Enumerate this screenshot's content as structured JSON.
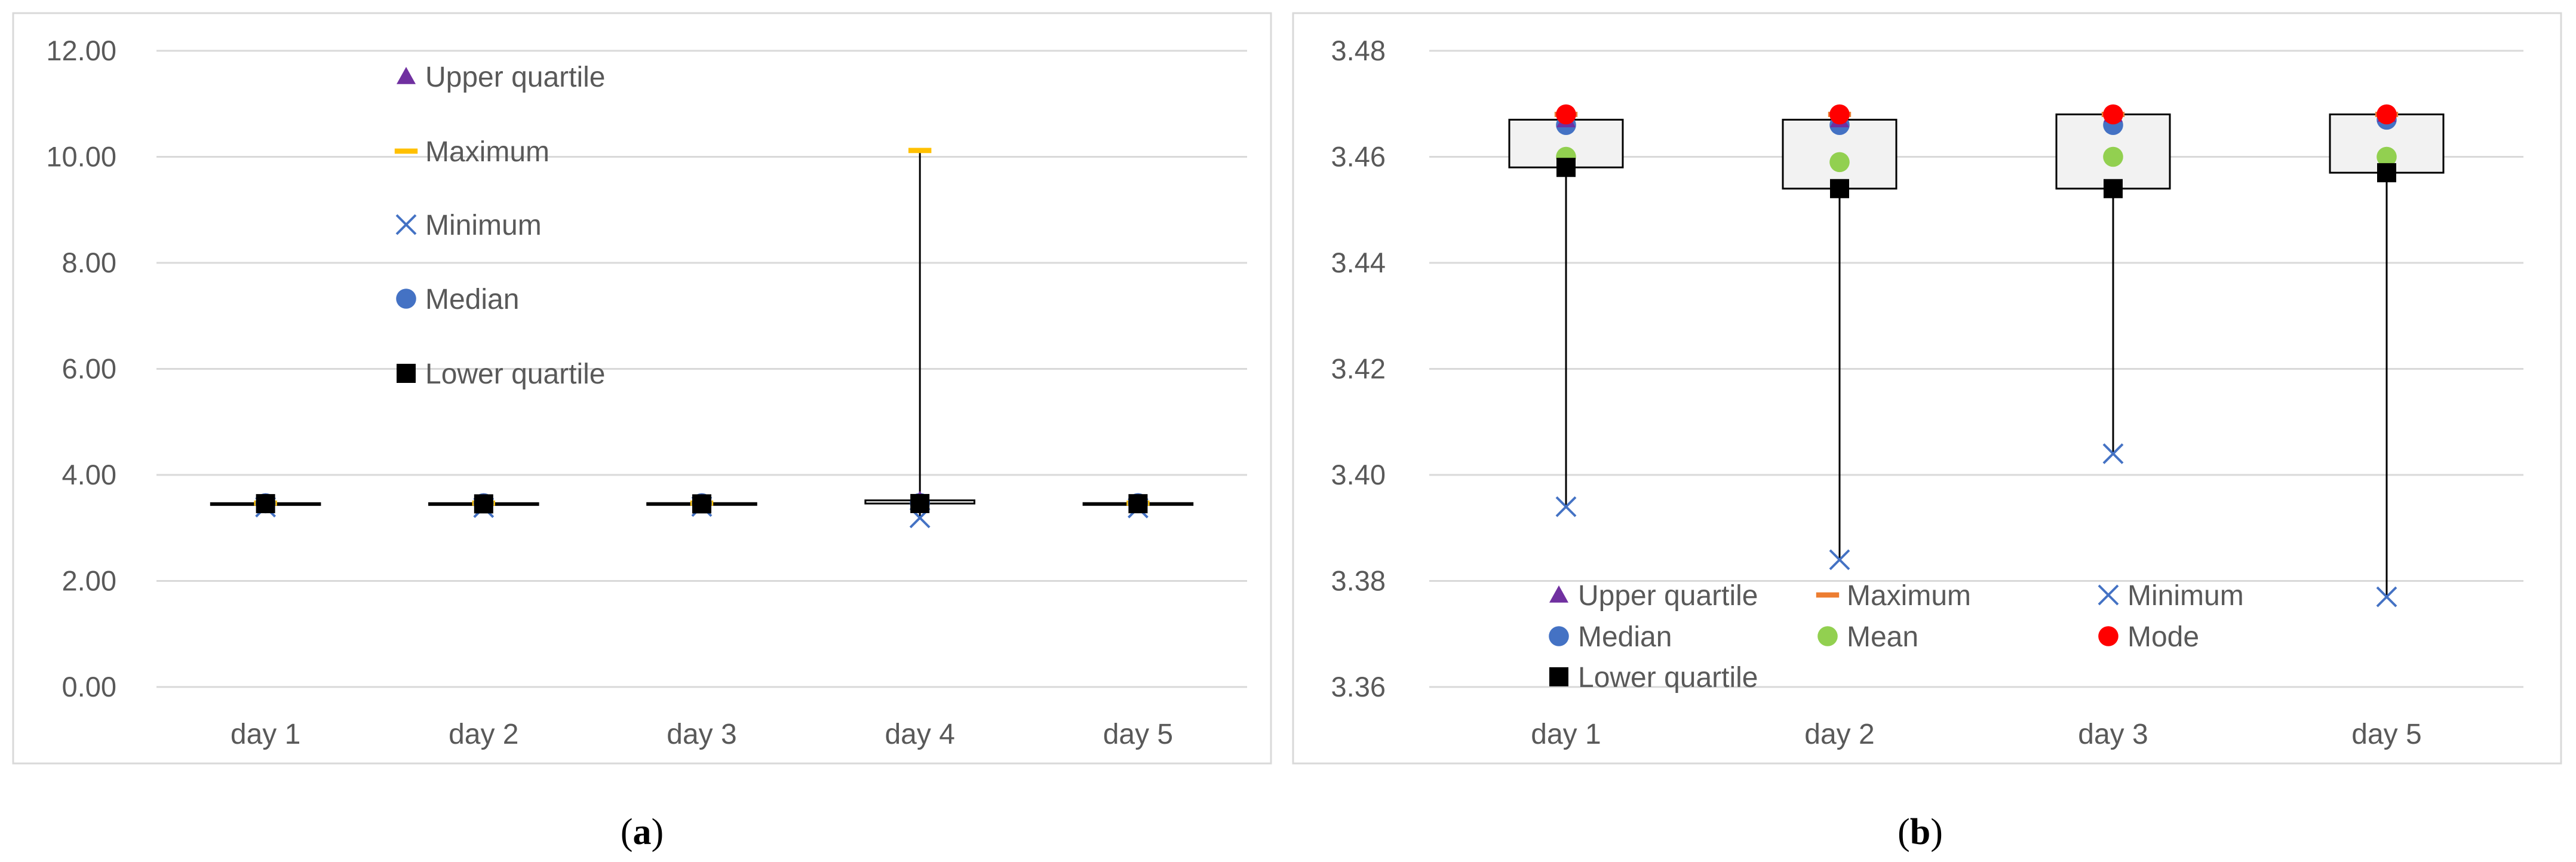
{
  "colors": {
    "upper_quartile": "#7030A0",
    "maximum_a": "#FFC000",
    "maximum_b": "#ED7D31",
    "minimum": "#4472C4",
    "median": "#4472C4",
    "mean": "#92D050",
    "mode": "#FF0000",
    "lower_quartile": "#000000",
    "grid": "#D9D9D9",
    "axis_text": "#595959",
    "box_fill": "#F2F2F2"
  },
  "chart_data": [
    {
      "type": "box",
      "caption_mark": "a",
      "caption_open": "(",
      "caption_close": ")",
      "categories": [
        "day 1",
        "day 2",
        "day 3",
        "day 4",
        "day 5"
      ],
      "ylim": [
        0,
        12
      ],
      "yticks": [
        "0.00",
        "2.00",
        "4.00",
        "6.00",
        "8.00",
        "10.00",
        "12.00"
      ],
      "grid": true,
      "legend_position": "inside-top-left",
      "series": [
        {
          "key": "upper_quartile",
          "name": "Upper quartile",
          "values": [
            3.467,
            3.467,
            3.468,
            3.52,
            3.468
          ]
        },
        {
          "key": "maximum",
          "name": "Maximum",
          "values": [
            3.468,
            3.468,
            3.468,
            10.12,
            3.468
          ]
        },
        {
          "key": "minimum",
          "name": "Minimum",
          "values": [
            3.394,
            3.384,
            3.404,
            3.19,
            3.377
          ]
        },
        {
          "key": "median",
          "name": "Median",
          "values": [
            3.466,
            3.466,
            3.466,
            3.47,
            3.467
          ]
        },
        {
          "key": "lower_quartile",
          "name": "Lower quartile",
          "values": [
            3.458,
            3.454,
            3.454,
            3.46,
            3.457
          ]
        }
      ]
    },
    {
      "type": "box",
      "caption_mark": "b",
      "caption_open": "(",
      "caption_close": ")",
      "categories": [
        "day 1",
        "day 2",
        "day 3",
        "day 5"
      ],
      "ylim": [
        3.36,
        3.48
      ],
      "yticks": [
        "3.36",
        "3.38",
        "3.40",
        "3.42",
        "3.44",
        "3.46",
        "3.48"
      ],
      "grid": true,
      "legend_position": "bottom-inside",
      "series": [
        {
          "key": "upper_quartile",
          "name": "Upper quartile",
          "values": [
            3.467,
            3.467,
            3.468,
            3.468
          ]
        },
        {
          "key": "maximum",
          "name": "Maximum",
          "values": [
            3.468,
            3.468,
            3.468,
            3.468
          ]
        },
        {
          "key": "minimum",
          "name": "Minimum",
          "values": [
            3.394,
            3.384,
            3.404,
            3.377
          ]
        },
        {
          "key": "median",
          "name": "Median",
          "values": [
            3.466,
            3.466,
            3.466,
            3.467
          ]
        },
        {
          "key": "mean",
          "name": "Mean",
          "values": [
            3.46,
            3.459,
            3.46,
            3.46
          ]
        },
        {
          "key": "mode",
          "name": "Mode",
          "values": [
            3.468,
            3.468,
            3.468,
            3.468
          ]
        },
        {
          "key": "lower_quartile",
          "name": "Lower quartile",
          "values": [
            3.458,
            3.454,
            3.454,
            3.457
          ]
        }
      ]
    }
  ]
}
